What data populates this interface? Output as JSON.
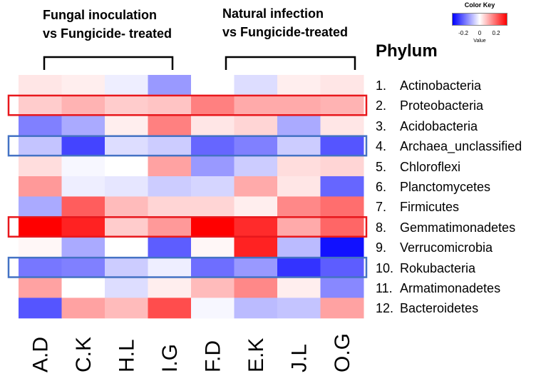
{
  "group_titles": [
    [
      "Fungal inoculation",
      "vs Fungicide- treated"
    ],
    [
      "Natural infection",
      "vs Fungicide-treated"
    ]
  ],
  "phylum_heading": "Phylum",
  "color_key": {
    "title": "Color Key",
    "ticks": [
      "-0.2",
      "0",
      "0.2"
    ],
    "value_label": "Value",
    "low_color": "#0000ff",
    "mid_color": "#ffffff",
    "high_color": "#ff0000"
  },
  "highlight_colors": {
    "red": "#e8171c",
    "blue": "#4472c4"
  },
  "chart_data": {
    "type": "heatmap",
    "x": [
      "A.D",
      "C.K",
      "H.L",
      "I.G",
      "F.D",
      "E.K",
      "J.L",
      "O.G"
    ],
    "y_numbers": [
      "1.",
      "2.",
      "3.",
      "4.",
      "5.",
      "6.",
      "7.",
      "8.",
      "9.",
      "10.",
      "11.",
      "12."
    ],
    "y": [
      "Actinobacteria",
      "Proteobacteria",
      "Acidobacteria",
      "Archaea_unclassified",
      "Chloroflexi",
      "Planctomycetes",
      "Firmicutes",
      "Gemmatimonadetes",
      "Verrucomicrobia",
      "Rokubacteria",
      "Armatimonadetes",
      "Bacteroidetes"
    ],
    "value_range": [
      -0.3,
      0.3
    ],
    "values": [
      [
        0.03,
        0.02,
        -0.02,
        -0.12,
        0.0,
        -0.04,
        0.02,
        0.03
      ],
      [
        0.06,
        0.09,
        0.06,
        0.07,
        0.15,
        0.1,
        0.1,
        0.09
      ],
      [
        -0.15,
        -0.1,
        0.02,
        0.15,
        0.03,
        0.05,
        -0.1,
        0.03
      ],
      [
        -0.07,
        -0.22,
        -0.04,
        -0.06,
        -0.18,
        -0.15,
        -0.06,
        -0.2
      ],
      [
        0.04,
        -0.01,
        0.0,
        0.11,
        -0.12,
        -0.06,
        0.04,
        0.05
      ],
      [
        0.12,
        -0.02,
        -0.03,
        -0.06,
        -0.05,
        0.1,
        0.03,
        -0.18
      ],
      [
        -0.1,
        0.19,
        0.08,
        0.05,
        0.05,
        0.02,
        0.14,
        0.17
      ],
      [
        0.3,
        0.26,
        0.06,
        0.12,
        0.3,
        0.25,
        0.1,
        0.18
      ],
      [
        0.01,
        -0.1,
        0.0,
        -0.19,
        0.01,
        0.26,
        -0.08,
        -0.28
      ],
      [
        -0.16,
        -0.15,
        -0.06,
        -0.02,
        -0.17,
        -0.12,
        -0.24,
        -0.19
      ],
      [
        0.11,
        0.0,
        -0.04,
        0.02,
        0.08,
        0.14,
        0.02,
        -0.14
      ],
      [
        -0.2,
        0.11,
        0.08,
        0.21,
        -0.01,
        -0.08,
        -0.07,
        0.11
      ]
    ],
    "highlighted_rows": [
      {
        "row": 2,
        "color": "red"
      },
      {
        "row": 4,
        "color": "blue"
      },
      {
        "row": 8,
        "color": "red"
      },
      {
        "row": 10,
        "color": "blue"
      }
    ]
  }
}
